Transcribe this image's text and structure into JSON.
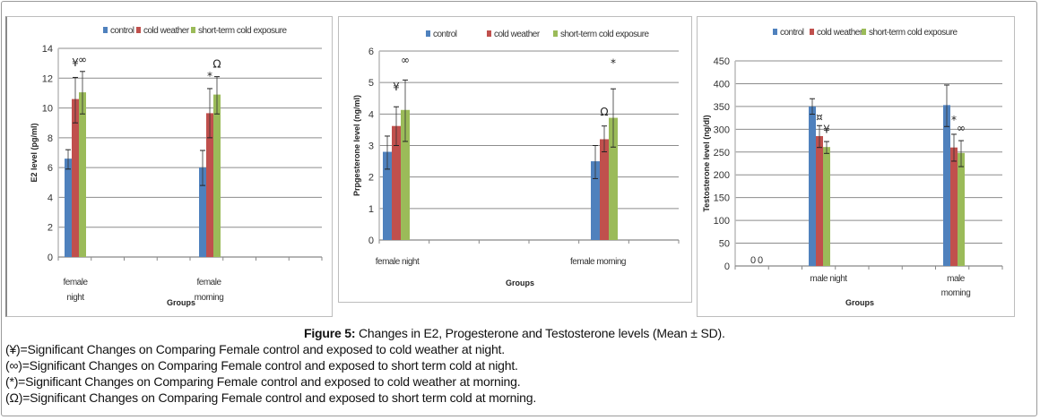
{
  "legend_colors": {
    "control": "#4f81bd",
    "cold weather": "#c0504d",
    "short-term cold exposure": "#9bbb59"
  },
  "chart_data": [
    {
      "type": "bar",
      "ylabel": "E2 level (pg/ml)",
      "xlabel": "Groups",
      "ylim": [
        0,
        14
      ],
      "yticks": [
        0,
        2,
        4,
        6,
        8,
        10,
        12,
        14
      ],
      "grid": true,
      "legend": "top",
      "categories": [
        "female night",
        "female morning"
      ],
      "category_lines": [
        [
          "female",
          "night"
        ],
        [
          "female",
          "morning"
        ]
      ],
      "series": [
        {
          "name": "control",
          "values": [
            6.6,
            6.0
          ],
          "error_low": [
            5.9,
            4.8
          ],
          "error_high": [
            7.2,
            7.15
          ]
        },
        {
          "name": "cold weather",
          "values": [
            10.6,
            9.65
          ],
          "error_low": [
            9.0,
            8.0
          ],
          "error_high": [
            12.05,
            11.3
          ]
        },
        {
          "name": "short-term cold exposure",
          "values": [
            11.05,
            10.9
          ],
          "error_low": [
            9.6,
            9.6
          ],
          "error_high": [
            12.45,
            12.1
          ]
        }
      ],
      "annotations": [
        {
          "text": "¥",
          "category": 0,
          "series": 1,
          "y": 12.8
        },
        {
          "text": "∞",
          "category": 0,
          "series": 2,
          "y": 13.0
        },
        {
          "text": "*",
          "category": 1,
          "series": 1,
          "y": 11.9
        },
        {
          "text": "Ω",
          "category": 1,
          "series": 2,
          "y": 12.7
        }
      ],
      "extra_labels": []
    },
    {
      "type": "bar",
      "ylabel": "Prpgesterone level (ng/ml)",
      "xlabel": "Groups",
      "ylim": [
        0,
        6
      ],
      "yticks": [
        0,
        1,
        2,
        3,
        4,
        5,
        6
      ],
      "grid": true,
      "legend": "top",
      "categories": [
        "female night",
        "female morning"
      ],
      "category_lines": [
        [
          "female night"
        ],
        [
          "female morning"
        ]
      ],
      "series": [
        {
          "name": "control",
          "values": [
            2.8,
            2.5
          ],
          "error_low": [
            2.25,
            1.95
          ],
          "error_high": [
            3.3,
            3.0
          ]
        },
        {
          "name": "cold weather",
          "values": [
            3.62,
            3.2
          ],
          "error_low": [
            3.0,
            2.8
          ],
          "error_high": [
            4.23,
            3.62
          ]
        },
        {
          "name": "short-term cold exposure",
          "values": [
            4.13,
            3.88
          ],
          "error_low": [
            3.13,
            2.95
          ],
          "error_high": [
            5.08,
            4.8
          ]
        }
      ],
      "annotations": [
        {
          "text": "¥",
          "category": 0,
          "series": 1,
          "y": 4.75
        },
        {
          "text": "∞",
          "category": 0,
          "series": 2,
          "y": 5.6
        },
        {
          "text": "Ω",
          "category": 1,
          "series": 1,
          "y": 3.95
        },
        {
          "text": "*",
          "category": 1,
          "series": 2,
          "y": 5.5
        }
      ],
      "extra_labels": []
    },
    {
      "type": "bar",
      "ylabel": "Testosterone level (ng/dl)",
      "xlabel": "Groups",
      "ylim": [
        0,
        450
      ],
      "yticks": [
        0,
        50,
        100,
        150,
        200,
        250,
        300,
        350,
        400,
        450
      ],
      "grid": true,
      "legend": "top",
      "categories": [
        "male night",
        "male morning"
      ],
      "category_lines": [
        [
          "male night"
        ],
        [
          "male",
          "morning"
        ]
      ],
      "series": [
        {
          "name": "control",
          "values": [
            350,
            353
          ],
          "error_low": [
            333,
            306
          ],
          "error_high": [
            367,
            397
          ]
        },
        {
          "name": "cold weather",
          "values": [
            285,
            260
          ],
          "error_low": [
            260,
            230
          ],
          "error_high": [
            308,
            289
          ]
        },
        {
          "name": "short-term cold exposure",
          "values": [
            261,
            248
          ],
          "error_low": [
            247,
            218
          ],
          "error_high": [
            273,
            275
          ]
        }
      ],
      "annotations": [
        {
          "text": "¤",
          "category": 0,
          "series": 1,
          "y": 318
        },
        {
          "text": "¥",
          "category": 0,
          "series": 2,
          "y": 292
        },
        {
          "text": "*",
          "category": 1,
          "series": 1,
          "y": 312
        },
        {
          "text": "∞",
          "category": 1,
          "series": 2,
          "y": 295
        }
      ],
      "extra_labels": [
        "0",
        "0"
      ]
    }
  ],
  "caption": {
    "label": "Figure 5:",
    "title": " Changes in E2, Progesterone and Testosterone levels (Mean ± SD).",
    "notes": [
      "(¥)=Significant Changes on Comparing Female control and exposed to cold weather at night.",
      "(∞)=Significant Changes on Comparing Female control and exposed to short term cold at night.",
      "(*)=Significant Changes on Comparing Female control and exposed to cold weather at morning.",
      "(Ω)=Significant Changes on Comparing Female control and exposed to short term cold at morning."
    ]
  }
}
